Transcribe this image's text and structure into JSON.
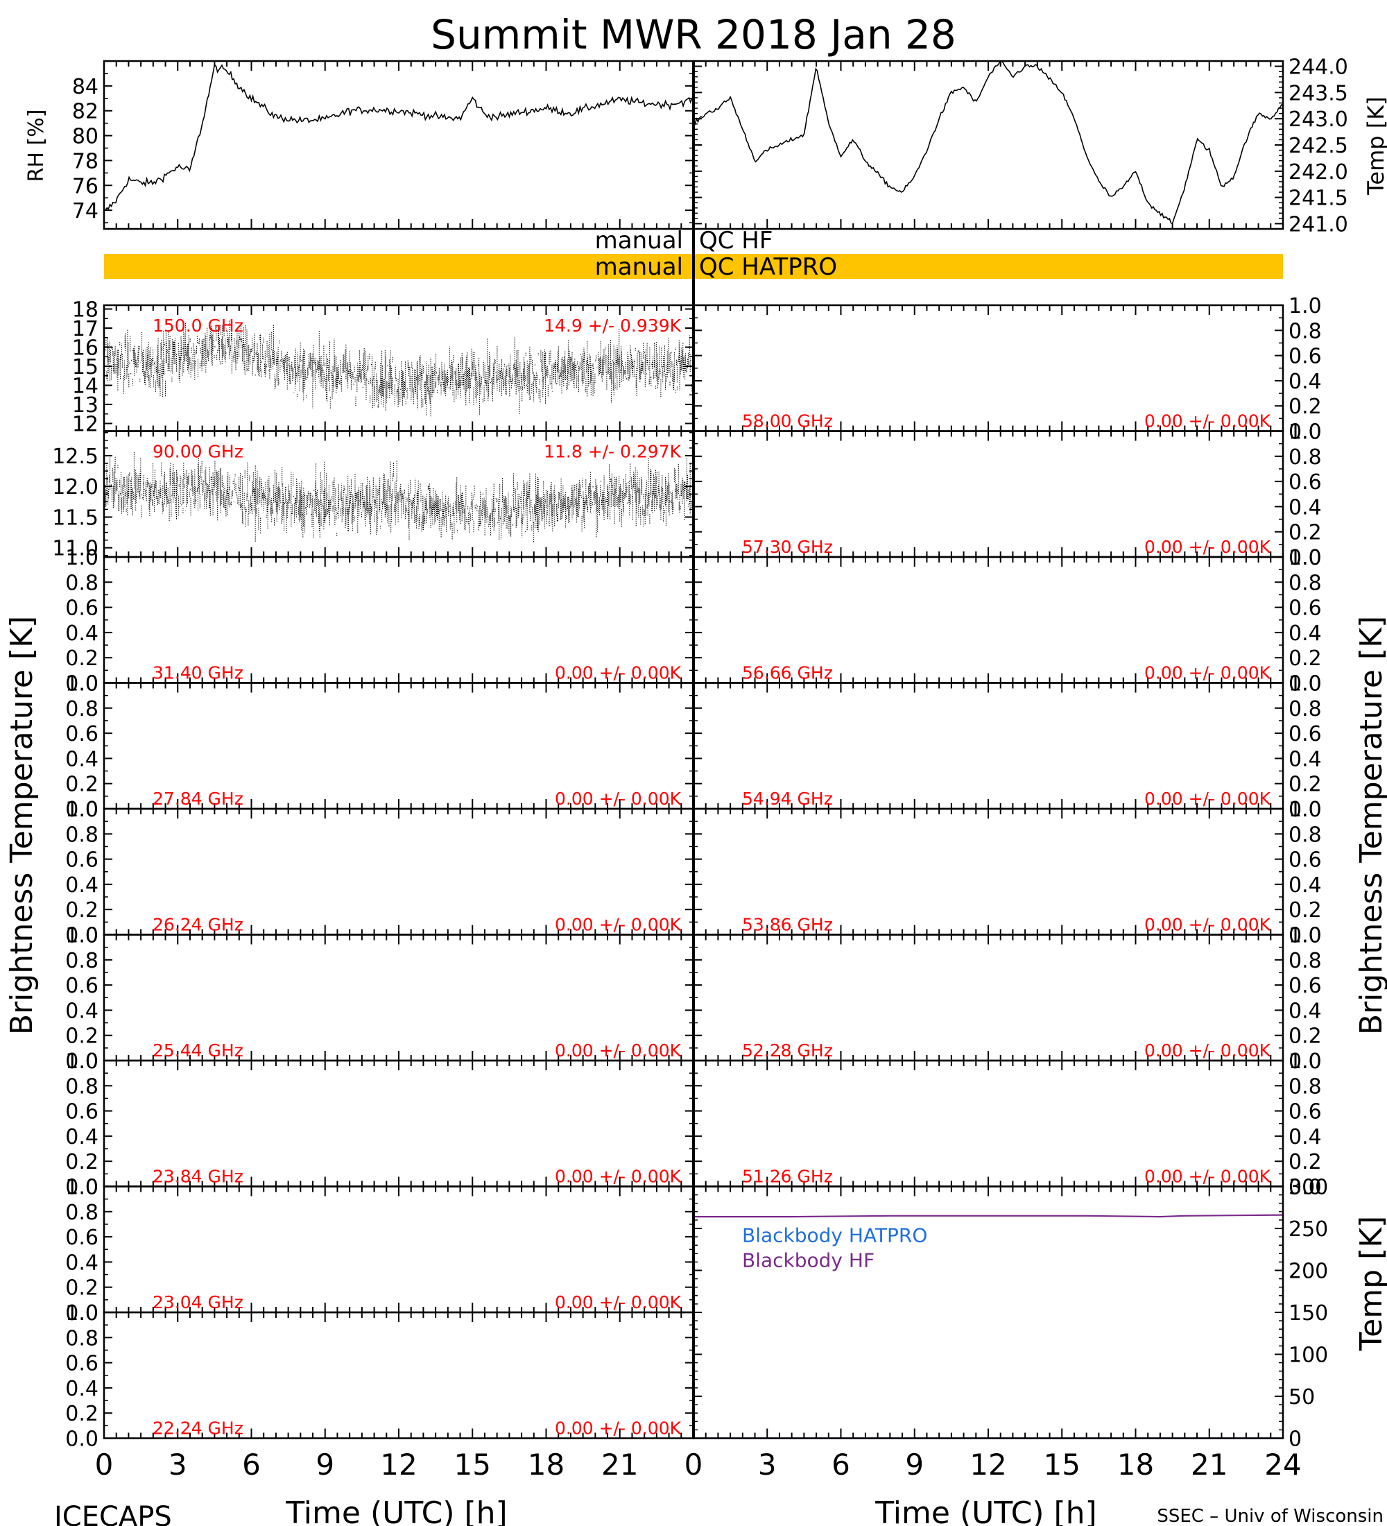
{
  "title": "Summit MWR 2018 Jan 28",
  "footer": {
    "left": "ICECAPS",
    "right": "SSEC – Univ of Wisconsin"
  },
  "axis_labels": {
    "rh": "RH [%]",
    "temp_top": "Temp [K]",
    "bt_left": "Brightness Temperature [K]",
    "bt_right": "Brightness Temperature [K]",
    "bb_temp": "Temp [K]",
    "time_left": "Time (UTC) [h]",
    "time_right": "Time (UTC) [h]"
  },
  "qc": {
    "hf_left": "manual",
    "hf_right": "QC HF",
    "hatpro_left": "manual",
    "hatpro_right": "QC HATPRO",
    "hatpro_color": "#ffc400"
  },
  "x_ticks": [
    "0",
    "3",
    "6",
    "9",
    "12",
    "15",
    "18",
    "21",
    "24"
  ],
  "chart_data": [
    {
      "type": "line",
      "panel": "rh",
      "xlabel": "",
      "ylabel": "RH [%]",
      "xlim": [
        0,
        24
      ],
      "ylim": [
        72.5,
        86
      ],
      "yticks": [
        74,
        76,
        78,
        80,
        82,
        84
      ],
      "x": [
        0,
        0.5,
        1,
        1.5,
        2,
        2.5,
        3,
        3.5,
        4,
        4.5,
        5,
        5.5,
        6,
        7,
        8,
        9,
        10,
        11,
        12,
        13,
        14,
        14.5,
        15,
        15.5,
        16,
        17,
        18,
        19,
        20,
        21,
        22,
        23,
        24
      ],
      "values": [
        73.8,
        74.8,
        76.5,
        76.2,
        76.2,
        76.8,
        77.5,
        77.2,
        81,
        85.5,
        85.2,
        84,
        83,
        81.5,
        81.2,
        81.3,
        82,
        82.1,
        82,
        81.7,
        81.4,
        81.4,
        83,
        81.7,
        81.5,
        81.9,
        82.2,
        81.8,
        82.4,
        82.9,
        82.6,
        82.5,
        82.9
      ]
    },
    {
      "type": "line",
      "panel": "temp",
      "xlabel": "",
      "ylabel": "Temp [K]",
      "xlim": [
        0,
        24
      ],
      "ylim": [
        240.9,
        244.1
      ],
      "yticks": [
        241.0,
        241.5,
        242.0,
        242.5,
        243.0,
        243.5,
        244.0
      ],
      "x": [
        0,
        0.5,
        1,
        1.5,
        2,
        2.5,
        3,
        3.5,
        4,
        4.5,
        5,
        5.5,
        6,
        6.5,
        7,
        8,
        8.5,
        9,
        9.5,
        10,
        10.5,
        11,
        11.5,
        12,
        12.5,
        13,
        13.5,
        14,
        15,
        15.5,
        16,
        16.5,
        17,
        17.5,
        18,
        18.5,
        19,
        19.5,
        20,
        20.5,
        21,
        21.5,
        22,
        22.5,
        23,
        23.5,
        24
      ],
      "values": [
        242.9,
        243.1,
        243.2,
        243.4,
        242.8,
        242.2,
        242.4,
        242.5,
        242.6,
        242.7,
        244.0,
        242.9,
        242.3,
        242.6,
        242.2,
        241.7,
        241.6,
        241.9,
        242.4,
        243.0,
        243.5,
        243.6,
        243.3,
        243.8,
        244.1,
        243.8,
        244.0,
        244.0,
        243.5,
        243.0,
        242.3,
        241.8,
        241.5,
        241.7,
        242.0,
        241.4,
        241.2,
        241.0,
        241.7,
        242.6,
        242.4,
        241.7,
        241.9,
        242.6,
        243.1,
        243.0,
        243.3
      ]
    },
    {
      "type": "scatter",
      "panel": "bt",
      "side": "left",
      "channel": "150.0 GHz",
      "stat": "14.9 +/- 0.939K",
      "ylim": [
        11.6,
        18.2
      ],
      "yticks": [
        "12",
        "13",
        "14",
        "15",
        "16",
        "17",
        "18"
      ],
      "mean": 14.9,
      "std": 0.939,
      "trend_x": [
        0,
        2,
        4,
        5,
        6,
        8,
        10,
        12,
        14,
        16,
        18,
        20,
        22,
        24
      ],
      "trend_y": [
        15.3,
        15.1,
        15.9,
        16.2,
        15.6,
        14.8,
        14.6,
        14.2,
        14.2,
        14.4,
        14.6,
        14.9,
        15.0,
        15.0
      ]
    },
    {
      "type": "scatter",
      "panel": "bt",
      "side": "left",
      "channel": "90.00 GHz",
      "stat": "11.8 +/- 0.297K",
      "ylim": [
        10.85,
        12.9
      ],
      "yticks": [
        "11.0",
        "11.5",
        "12.0",
        "12.5"
      ],
      "mean": 11.8,
      "std": 0.297,
      "trend_x": [
        0,
        2,
        4,
        6,
        8,
        10,
        12,
        14,
        16,
        18,
        20,
        22,
        24
      ],
      "trend_y": [
        12.0,
        11.9,
        12.0,
        11.8,
        11.7,
        11.7,
        11.8,
        11.6,
        11.6,
        11.7,
        11.8,
        11.9,
        11.9
      ]
    },
    {
      "type": "scatter",
      "panel": "bt",
      "side": "left",
      "channel": "31.40 GHz",
      "stat": "0.00 +/- 0.00K",
      "ylim": [
        0,
        1
      ],
      "yticks": [
        "0.0",
        "0.2",
        "0.4",
        "0.6",
        "0.8",
        "1.0"
      ]
    },
    {
      "type": "scatter",
      "panel": "bt",
      "side": "left",
      "channel": "27.84 GHz",
      "stat": "0.00 +/- 0.00K",
      "ylim": [
        0,
        1
      ],
      "yticks": [
        "0.0",
        "0.2",
        "0.4",
        "0.6",
        "0.8",
        "1.0"
      ]
    },
    {
      "type": "scatter",
      "panel": "bt",
      "side": "left",
      "channel": "26.24 GHz",
      "stat": "0.00 +/- 0.00K",
      "ylim": [
        0,
        1
      ],
      "yticks": [
        "0.0",
        "0.2",
        "0.4",
        "0.6",
        "0.8",
        "1.0"
      ]
    },
    {
      "type": "scatter",
      "panel": "bt",
      "side": "left",
      "channel": "25.44 GHz",
      "stat": "0.00 +/- 0.00K",
      "ylim": [
        0,
        1
      ],
      "yticks": [
        "0.0",
        "0.2",
        "0.4",
        "0.6",
        "0.8",
        "1.0"
      ]
    },
    {
      "type": "scatter",
      "panel": "bt",
      "side": "left",
      "channel": "23.84 GHz",
      "stat": "0.00 +/- 0.00K",
      "ylim": [
        0,
        1
      ],
      "yticks": [
        "0.0",
        "0.2",
        "0.4",
        "0.6",
        "0.8",
        "1.0"
      ]
    },
    {
      "type": "scatter",
      "panel": "bt",
      "side": "left",
      "channel": "23.04 GHz",
      "stat": "0.00 +/- 0.00K",
      "ylim": [
        0,
        1
      ],
      "yticks": [
        "0.0",
        "0.2",
        "0.4",
        "0.6",
        "0.8",
        "1.0"
      ]
    },
    {
      "type": "scatter",
      "panel": "bt",
      "side": "left",
      "channel": "22.24 GHz",
      "stat": "0.00 +/- 0.00K",
      "ylim": [
        0,
        1
      ],
      "yticks": [
        "0.0",
        "0.2",
        "0.4",
        "0.6",
        "0.8",
        "1.0"
      ]
    },
    {
      "type": "scatter",
      "panel": "bt",
      "side": "right",
      "channel": "58.00 GHz",
      "stat": "0.00 +/- 0.00K",
      "ylim": [
        0,
        1
      ],
      "yticks": [
        "0.0",
        "0.2",
        "0.4",
        "0.6",
        "0.8",
        "1.0"
      ]
    },
    {
      "type": "scatter",
      "panel": "bt",
      "side": "right",
      "channel": "57.30 GHz",
      "stat": "0.00 +/- 0.00K",
      "ylim": [
        0,
        1
      ],
      "yticks": [
        "0.0",
        "0.2",
        "0.4",
        "0.6",
        "0.8",
        "1.0"
      ]
    },
    {
      "type": "scatter",
      "panel": "bt",
      "side": "right",
      "channel": "56.66 GHz",
      "stat": "0.00 +/- 0.00K",
      "ylim": [
        0,
        1
      ],
      "yticks": [
        "0.0",
        "0.2",
        "0.4",
        "0.6",
        "0.8",
        "1.0"
      ]
    },
    {
      "type": "scatter",
      "panel": "bt",
      "side": "right",
      "channel": "54.94 GHz",
      "stat": "0.00 +/- 0.00K",
      "ylim": [
        0,
        1
      ],
      "yticks": [
        "0.0",
        "0.2",
        "0.4",
        "0.6",
        "0.8",
        "1.0"
      ]
    },
    {
      "type": "scatter",
      "panel": "bt",
      "side": "right",
      "channel": "53.86 GHz",
      "stat": "0.00 +/- 0.00K",
      "ylim": [
        0,
        1
      ],
      "yticks": [
        "0.0",
        "0.2",
        "0.4",
        "0.6",
        "0.8",
        "1.0"
      ]
    },
    {
      "type": "scatter",
      "panel": "bt",
      "side": "right",
      "channel": "52.28 GHz",
      "stat": "0.00 +/- 0.00K",
      "ylim": [
        0,
        1
      ],
      "yticks": [
        "0.0",
        "0.2",
        "0.4",
        "0.6",
        "0.8",
        "1.0"
      ]
    },
    {
      "type": "scatter",
      "panel": "bt",
      "side": "right",
      "channel": "51.26 GHz",
      "stat": "0.00 +/- 0.00K",
      "ylim": [
        0,
        1
      ],
      "yticks": [
        "0.0",
        "0.2",
        "0.4",
        "0.6",
        "0.8",
        "1.0"
      ]
    },
    {
      "type": "line",
      "panel": "blackbody",
      "ylabel": "Temp [K]",
      "xlim": [
        0,
        24
      ],
      "ylim": [
        0,
        300
      ],
      "yticks": [
        "0",
        "50",
        "100",
        "150",
        "200",
        "250",
        "300"
      ],
      "series": [
        {
          "name": "Blackbody HATPRO",
          "color": "#1f6fe0",
          "x": [
            0,
            24
          ],
          "values": [
            0,
            0
          ]
        },
        {
          "name": "Blackbody HF",
          "color": "#7a2a8a",
          "x": [
            0,
            4,
            8,
            12,
            16,
            19,
            20,
            24
          ],
          "values": [
            264,
            264,
            265,
            265,
            265,
            264,
            265,
            266
          ]
        }
      ]
    }
  ]
}
